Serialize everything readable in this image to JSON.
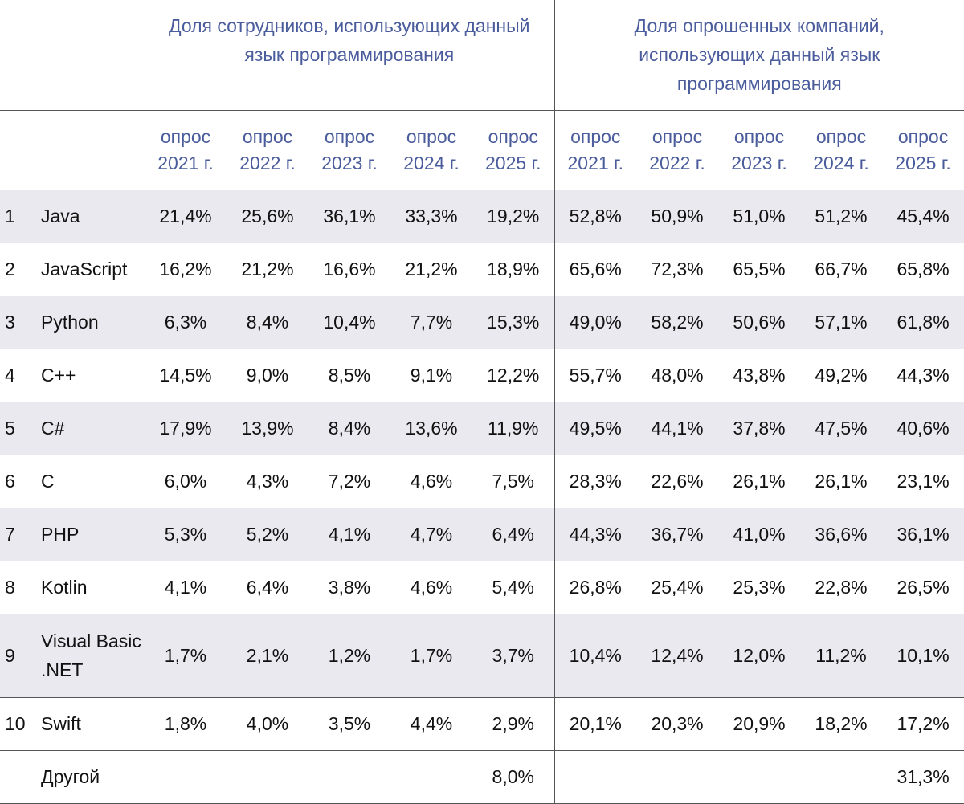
{
  "table": {
    "group_headers": [
      "Доля сотрудников, использующих данный язык программирования",
      "Доля опрошенных компаний, использующих данный язык программирования"
    ],
    "year_headers": [
      "опрос 2021 г.",
      "опрос 2022 г.",
      "опрос 2023 г.",
      "опрос 2024 г.",
      "опрос 2025 г."
    ],
    "rows": [
      {
        "rank": "1",
        "name": "Java",
        "employees": [
          "21,4%",
          "25,6%",
          "36,1%",
          "33,3%",
          "19,2%"
        ],
        "companies": [
          "52,8%",
          "50,9%",
          "51,0%",
          "51,2%",
          "45,4%"
        ]
      },
      {
        "rank": "2",
        "name": "JavaScript",
        "employees": [
          "16,2%",
          "21,2%",
          "16,6%",
          "21,2%",
          "18,9%"
        ],
        "companies": [
          "65,6%",
          "72,3%",
          "65,5%",
          "66,7%",
          "65,8%"
        ]
      },
      {
        "rank": "3",
        "name": "Python",
        "employees": [
          "6,3%",
          "8,4%",
          "10,4%",
          "7,7%",
          "15,3%"
        ],
        "companies": [
          "49,0%",
          "58,2%",
          "50,6%",
          "57,1%",
          "61,8%"
        ]
      },
      {
        "rank": "4",
        "name": "C++",
        "employees": [
          "14,5%",
          "9,0%",
          "8,5%",
          "9,1%",
          "12,2%"
        ],
        "companies": [
          "55,7%",
          "48,0%",
          "43,8%",
          "49,2%",
          "44,3%"
        ]
      },
      {
        "rank": "5",
        "name": "C#",
        "employees": [
          "17,9%",
          "13,9%",
          "8,4%",
          "13,6%",
          "11,9%"
        ],
        "companies": [
          "49,5%",
          "44,1%",
          "37,8%",
          "47,5%",
          "40,6%"
        ]
      },
      {
        "rank": "6",
        "name": "C",
        "employees": [
          "6,0%",
          "4,3%",
          "7,2%",
          "4,6%",
          "7,5%"
        ],
        "companies": [
          "28,3%",
          "22,6%",
          "26,1%",
          "26,1%",
          "23,1%"
        ]
      },
      {
        "rank": "7",
        "name": "PHP",
        "employees": [
          "5,3%",
          "5,2%",
          "4,1%",
          "4,7%",
          "6,4%"
        ],
        "companies": [
          "44,3%",
          "36,7%",
          "41,0%",
          "36,6%",
          "36,1%"
        ]
      },
      {
        "rank": "8",
        "name": "Kotlin",
        "employees": [
          "4,1%",
          "6,4%",
          "3,8%",
          "4,6%",
          "5,4%"
        ],
        "companies": [
          "26,8%",
          "25,4%",
          "25,3%",
          "22,8%",
          "26,5%"
        ]
      },
      {
        "rank": "9",
        "name": "Visual Basic .NET",
        "employees": [
          "1,7%",
          "2,1%",
          "1,2%",
          "1,7%",
          "3,7%"
        ],
        "companies": [
          "10,4%",
          "12,4%",
          "12,0%",
          "11,2%",
          "10,1%"
        ]
      },
      {
        "rank": "10",
        "name": "Swift",
        "employees": [
          "1,8%",
          "4,0%",
          "3,5%",
          "4,4%",
          "2,9%"
        ],
        "companies": [
          "20,1%",
          "20,3%",
          "20,9%",
          "18,2%",
          "17,2%"
        ]
      },
      {
        "rank": null,
        "name": "Другой",
        "employees": [
          null,
          null,
          null,
          null,
          "8,0%"
        ],
        "companies": [
          null,
          null,
          null,
          null,
          "31,3%"
        ]
      }
    ]
  }
}
